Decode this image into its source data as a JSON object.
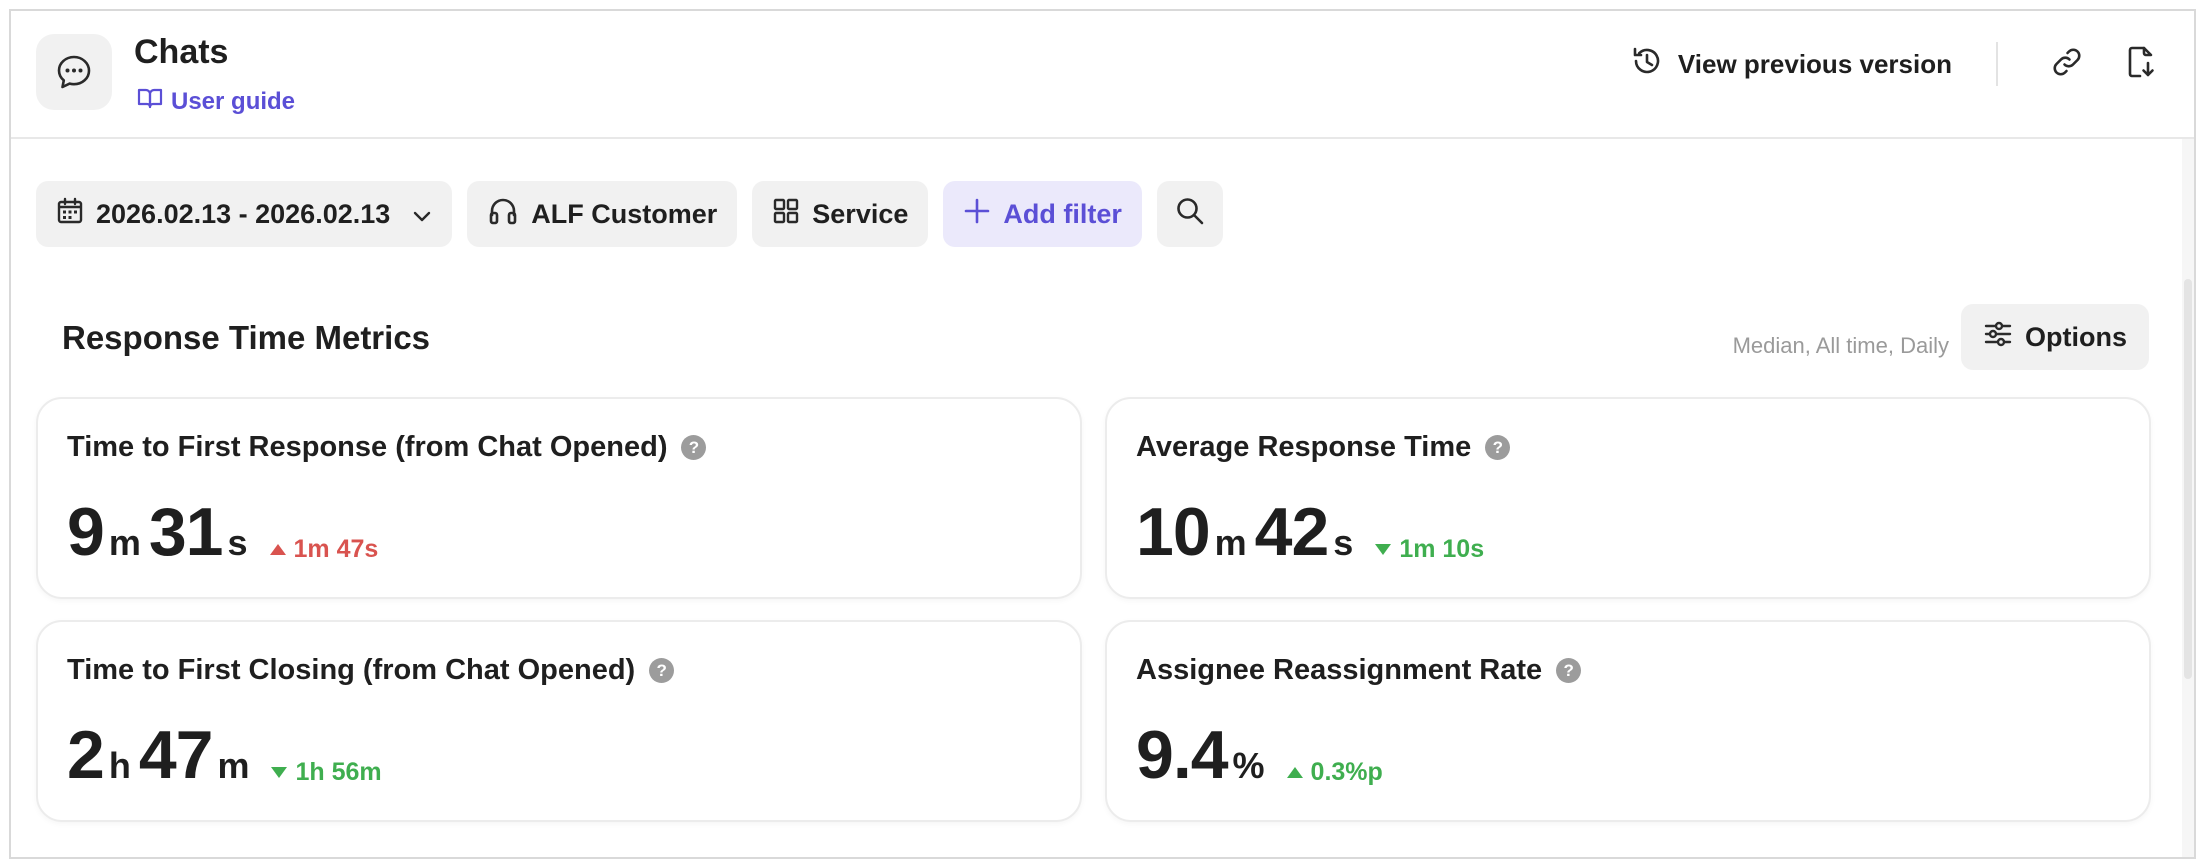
{
  "header": {
    "title": "Chats",
    "user_guide": "User guide",
    "view_previous_version": "View previous version",
    "icons": [
      "chat-bubble-icon",
      "book-icon",
      "history-icon",
      "link-icon",
      "file-download-icon"
    ]
  },
  "filters": {
    "date_range": "2026.02.13 - 2026.02.13",
    "customer": "ALF Customer",
    "service": "Service",
    "add_filter": "Add filter"
  },
  "section": {
    "title": "Response Time Metrics",
    "meta": "Median, All time, Daily",
    "options": "Options"
  },
  "cards": [
    {
      "title": "Time to First Response (from Chat Opened)",
      "values": [
        {
          "num": "9",
          "unit": "m"
        },
        {
          "num": "31",
          "unit": "s"
        }
      ],
      "delta": "1m 47s",
      "delta_direction": "up",
      "delta_color": "#d9534f"
    },
    {
      "title": "Average Response Time",
      "values": [
        {
          "num": "10",
          "unit": "m"
        },
        {
          "num": "42",
          "unit": "s"
        }
      ],
      "delta": "1m 10s",
      "delta_direction": "down",
      "delta_color": "#3fae4f"
    },
    {
      "title": "Time to First Closing (from Chat Opened)",
      "values": [
        {
          "num": "2",
          "unit": "h"
        },
        {
          "num": "47",
          "unit": "m"
        }
      ],
      "delta": "1h 56m",
      "delta_direction": "down",
      "delta_color": "#3fae4f"
    },
    {
      "title": "Assignee Reassignment Rate",
      "values": [
        {
          "num": "9.4",
          "unit": "%"
        }
      ],
      "delta": "0.3%p",
      "delta_direction": "up",
      "delta_color": "#3fae4f"
    }
  ],
  "colors": {
    "accent": "#5b4fd6",
    "chip_bg": "#f1f1f1",
    "negative": "#d9534f",
    "positive": "#3fae4f"
  }
}
